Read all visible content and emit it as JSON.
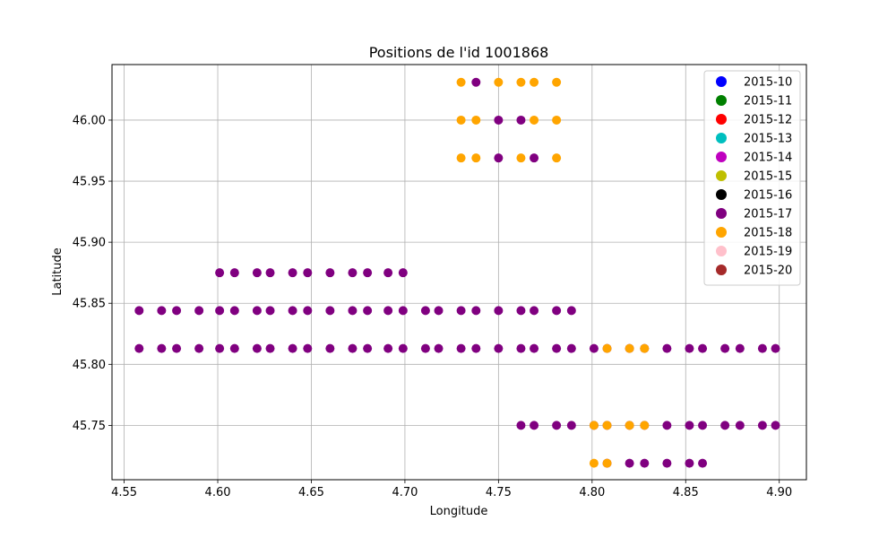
{
  "chart_data": {
    "type": "scatter",
    "title": "Positions de l'id 1001868",
    "xlabel": "Longitude",
    "ylabel": "Latitude",
    "xlim": [
      4.5435,
      4.9145
    ],
    "ylim": [
      45.7055,
      46.0455
    ],
    "grid": true,
    "legend_position": "top-right",
    "x_ticks": [
      {
        "value": 4.55,
        "label": "4.55"
      },
      {
        "value": 4.6,
        "label": "4.60"
      },
      {
        "value": 4.65,
        "label": "4.65"
      },
      {
        "value": 4.7,
        "label": "4.70"
      },
      {
        "value": 4.75,
        "label": "4.75"
      },
      {
        "value": 4.8,
        "label": "4.80"
      },
      {
        "value": 4.85,
        "label": "4.85"
      },
      {
        "value": 4.9,
        "label": "4.90"
      }
    ],
    "y_ticks": [
      {
        "value": 45.75,
        "label": "45.75"
      },
      {
        "value": 45.8,
        "label": "45.80"
      },
      {
        "value": 45.85,
        "label": "45.85"
      },
      {
        "value": 45.9,
        "label": "45.90"
      },
      {
        "value": 45.95,
        "label": "45.95"
      },
      {
        "value": 46.0,
        "label": "46.00"
      }
    ],
    "series": [
      {
        "name": "2015-10",
        "color": "#0000ff",
        "points": []
      },
      {
        "name": "2015-11",
        "color": "#008000",
        "points": []
      },
      {
        "name": "2015-12",
        "color": "#ff0000",
        "points": []
      },
      {
        "name": "2015-13",
        "color": "#00bfbf",
        "points": []
      },
      {
        "name": "2015-14",
        "color": "#bf00bf",
        "points": []
      },
      {
        "name": "2015-15",
        "color": "#bfbf00",
        "points": []
      },
      {
        "name": "2015-16",
        "color": "#000000",
        "points": []
      },
      {
        "name": "2015-17",
        "color": "#800080",
        "points": [
          [
            4.558,
            45.813
          ],
          [
            4.57,
            45.813
          ],
          [
            4.578,
            45.813
          ],
          [
            4.59,
            45.813
          ],
          [
            4.601,
            45.813
          ],
          [
            4.609,
            45.813
          ],
          [
            4.621,
            45.813
          ],
          [
            4.628,
            45.813
          ],
          [
            4.64,
            45.813
          ],
          [
            4.648,
            45.813
          ],
          [
            4.66,
            45.813
          ],
          [
            4.672,
            45.813
          ],
          [
            4.68,
            45.813
          ],
          [
            4.691,
            45.813
          ],
          [
            4.699,
            45.813
          ],
          [
            4.711,
            45.813
          ],
          [
            4.718,
            45.813
          ],
          [
            4.73,
            45.813
          ],
          [
            4.738,
            45.813
          ],
          [
            4.75,
            45.813
          ],
          [
            4.762,
            45.813
          ],
          [
            4.769,
            45.813
          ],
          [
            4.781,
            45.813
          ],
          [
            4.789,
            45.813
          ],
          [
            4.801,
            45.813
          ],
          [
            4.808,
            45.813
          ],
          [
            4.82,
            45.813
          ],
          [
            4.828,
            45.813
          ],
          [
            4.84,
            45.813
          ],
          [
            4.852,
            45.813
          ],
          [
            4.859,
            45.813
          ],
          [
            4.871,
            45.813
          ],
          [
            4.879,
            45.813
          ],
          [
            4.891,
            45.813
          ],
          [
            4.898,
            45.813
          ],
          [
            4.558,
            45.844
          ],
          [
            4.57,
            45.844
          ],
          [
            4.578,
            45.844
          ],
          [
            4.59,
            45.844
          ],
          [
            4.601,
            45.844
          ],
          [
            4.609,
            45.844
          ],
          [
            4.621,
            45.844
          ],
          [
            4.628,
            45.844
          ],
          [
            4.64,
            45.844
          ],
          [
            4.648,
            45.844
          ],
          [
            4.66,
            45.844
          ],
          [
            4.672,
            45.844
          ],
          [
            4.68,
            45.844
          ],
          [
            4.691,
            45.844
          ],
          [
            4.699,
            45.844
          ],
          [
            4.711,
            45.844
          ],
          [
            4.718,
            45.844
          ],
          [
            4.73,
            45.844
          ],
          [
            4.738,
            45.844
          ],
          [
            4.75,
            45.844
          ],
          [
            4.762,
            45.844
          ],
          [
            4.769,
            45.844
          ],
          [
            4.781,
            45.844
          ],
          [
            4.789,
            45.844
          ],
          [
            4.601,
            45.875
          ],
          [
            4.609,
            45.875
          ],
          [
            4.621,
            45.875
          ],
          [
            4.628,
            45.875
          ],
          [
            4.64,
            45.875
          ],
          [
            4.648,
            45.875
          ],
          [
            4.66,
            45.875
          ],
          [
            4.672,
            45.875
          ],
          [
            4.68,
            45.875
          ],
          [
            4.691,
            45.875
          ],
          [
            4.699,
            45.875
          ],
          [
            4.762,
            45.75
          ],
          [
            4.769,
            45.75
          ],
          [
            4.781,
            45.75
          ],
          [
            4.789,
            45.75
          ],
          [
            4.801,
            45.75
          ],
          [
            4.808,
            45.75
          ],
          [
            4.82,
            45.75
          ],
          [
            4.828,
            45.75
          ],
          [
            4.84,
            45.75
          ],
          [
            4.852,
            45.75
          ],
          [
            4.859,
            45.75
          ],
          [
            4.871,
            45.75
          ],
          [
            4.879,
            45.75
          ],
          [
            4.891,
            45.75
          ],
          [
            4.898,
            45.75
          ],
          [
            4.808,
            45.719
          ],
          [
            4.82,
            45.719
          ],
          [
            4.828,
            45.719
          ],
          [
            4.84,
            45.719
          ],
          [
            4.852,
            45.719
          ],
          [
            4.859,
            45.719
          ],
          [
            4.738,
            46.031
          ],
          [
            4.75,
            46.0
          ],
          [
            4.762,
            46.0
          ],
          [
            4.75,
            45.969
          ],
          [
            4.769,
            45.969
          ]
        ]
      },
      {
        "name": "2015-18",
        "color": "#ffa500",
        "points": [
          [
            4.73,
            46.031
          ],
          [
            4.75,
            46.031
          ],
          [
            4.762,
            46.031
          ],
          [
            4.769,
            46.031
          ],
          [
            4.781,
            46.031
          ],
          [
            4.73,
            46.0
          ],
          [
            4.738,
            46.0
          ],
          [
            4.769,
            46.0
          ],
          [
            4.781,
            46.0
          ],
          [
            4.73,
            45.969
          ],
          [
            4.738,
            45.969
          ],
          [
            4.762,
            45.969
          ],
          [
            4.781,
            45.969
          ],
          [
            4.808,
            45.813
          ],
          [
            4.82,
            45.813
          ],
          [
            4.828,
            45.813
          ],
          [
            4.801,
            45.75
          ],
          [
            4.808,
            45.75
          ],
          [
            4.82,
            45.75
          ],
          [
            4.828,
            45.75
          ],
          [
            4.801,
            45.719
          ],
          [
            4.808,
            45.719
          ]
        ]
      },
      {
        "name": "2015-19",
        "color": "#ffc0cb",
        "points": []
      },
      {
        "name": "2015-20",
        "color": "#a52a2a",
        "points": []
      }
    ]
  }
}
